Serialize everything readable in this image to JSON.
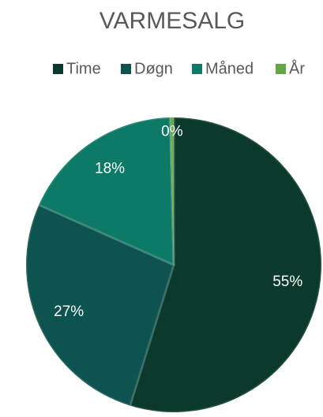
{
  "chart_data": {
    "type": "pie",
    "title": "VARMESALG",
    "categories": [
      "Time",
      "Døgn",
      "Måned",
      "År"
    ],
    "values": [
      55,
      27,
      18,
      0.4
    ],
    "value_labels": [
      "55%",
      "27%",
      "18%",
      "0%"
    ],
    "colors": [
      "#0b3a2c",
      "#0d5450",
      "#0c7a66",
      "#62a744"
    ],
    "legend": "top"
  }
}
